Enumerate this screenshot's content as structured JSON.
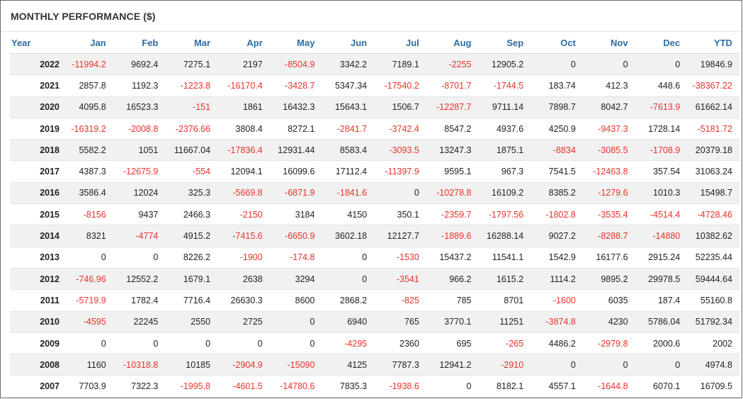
{
  "title": "MONTHLY PERFORMANCE ($)",
  "colors": {
    "header_text": "#2e6da4",
    "negative": "#e8322b",
    "stripe": "#f1f1f1"
  },
  "columns": [
    "Year",
    "Jan",
    "Feb",
    "Mar",
    "Apr",
    "May",
    "Jun",
    "Jul",
    "Aug",
    "Sep",
    "Oct",
    "Nov",
    "Dec",
    "YTD"
  ],
  "rows": [
    [
      "2022",
      "-11994.2",
      "9692.4",
      "7275.1",
      "2197",
      "-8504.9",
      "3342.2",
      "7189.1",
      "-2255",
      "12905.2",
      "0",
      "0",
      "0",
      "19846.9"
    ],
    [
      "2021",
      "2857.8",
      "1192.3",
      "-1223.8",
      "-16170.4",
      "-3428.7",
      "5347.34",
      "-17540.2",
      "-8701.7",
      "-1744.5",
      "183.74",
      "412.3",
      "448.6",
      "-38367.22"
    ],
    [
      "2020",
      "4095.8",
      "16523.3",
      "-151",
      "1861",
      "16432.3",
      "15643.1",
      "1506.7",
      "-12287.7",
      "9711.14",
      "7898.7",
      "8042.7",
      "-7613.9",
      "61662.14"
    ],
    [
      "2019",
      "-16319.2",
      "-2008.8",
      "-2376.66",
      "3808.4",
      "8272.1",
      "-2841.7",
      "-3742.4",
      "8547.2",
      "4937.6",
      "4250.9",
      "-9437.3",
      "1728.14",
      "-5181.72"
    ],
    [
      "2018",
      "5582.2",
      "1051",
      "11667.04",
      "-17836.4",
      "12931.44",
      "8583.4",
      "-3093.5",
      "13247.3",
      "1875.1",
      "-8834",
      "-3085.5",
      "-1708.9",
      "20379.18"
    ],
    [
      "2017",
      "4387.3",
      "-12675.9",
      "-554",
      "12094.1",
      "16099.6",
      "17112.4",
      "-11397.9",
      "9595.1",
      "967.3",
      "7541.5",
      "-12463.8",
      "357.54",
      "31063.24"
    ],
    [
      "2016",
      "3586.4",
      "12024",
      "325.3",
      "-5669.8",
      "-6871.9",
      "-1841.6",
      "0",
      "-10278.8",
      "16109.2",
      "8385.2",
      "-1279.6",
      "1010.3",
      "15498.7"
    ],
    [
      "2015",
      "-8156",
      "9437",
      "2466.3",
      "-2150",
      "3184",
      "4150",
      "350.1",
      "-2359.7",
      "-1797.56",
      "-1802.8",
      "-3535.4",
      "-4514.4",
      "-4728.46"
    ],
    [
      "2014",
      "8321",
      "-4774",
      "4915.2",
      "-7415.6",
      "-6650.9",
      "3602.18",
      "12127.7",
      "-1889.6",
      "16288.14",
      "9027.2",
      "-8288.7",
      "-14880",
      "10382.62"
    ],
    [
      "2013",
      "0",
      "0",
      "8226.2",
      "-1900",
      "-174.8",
      "0",
      "-1530",
      "15437.2",
      "11541.1",
      "1542.9",
      "16177.6",
      "2915.24",
      "52235.44"
    ],
    [
      "2012",
      "-746.96",
      "12552.2",
      "1679.1",
      "2638",
      "3294",
      "0",
      "-3541",
      "966.2",
      "1615.2",
      "1114.2",
      "9895.2",
      "29978.5",
      "59444.64"
    ],
    [
      "2011",
      "-5719.9",
      "1782.4",
      "7716.4",
      "26630.3",
      "8600",
      "2868.2",
      "-825",
      "785",
      "8701",
      "-1600",
      "6035",
      "187.4",
      "55160.8"
    ],
    [
      "2010",
      "-4595",
      "22245",
      "2550",
      "2725",
      "0",
      "6940",
      "765",
      "3770.1",
      "11251",
      "-3874.8",
      "4230",
      "5786.04",
      "51792.34"
    ],
    [
      "2009",
      "0",
      "0",
      "0",
      "0",
      "0",
      "-4295",
      "2360",
      "695",
      "-265",
      "4486.2",
      "-2979.8",
      "2000.6",
      "2002"
    ],
    [
      "2008",
      "1160",
      "-10318.8",
      "10185",
      "-2904.9",
      "-15090",
      "4125",
      "7787.3",
      "12941.2",
      "-2910",
      "0",
      "0",
      "0",
      "4974.8"
    ],
    [
      "2007",
      "7703.9",
      "7322.3",
      "-1995.8",
      "-4601.5",
      "-14780.6",
      "7835.3",
      "-1938.6",
      "0",
      "8182.1",
      "4557.1",
      "-1644.8",
      "6070.1",
      "16709.5"
    ]
  ]
}
